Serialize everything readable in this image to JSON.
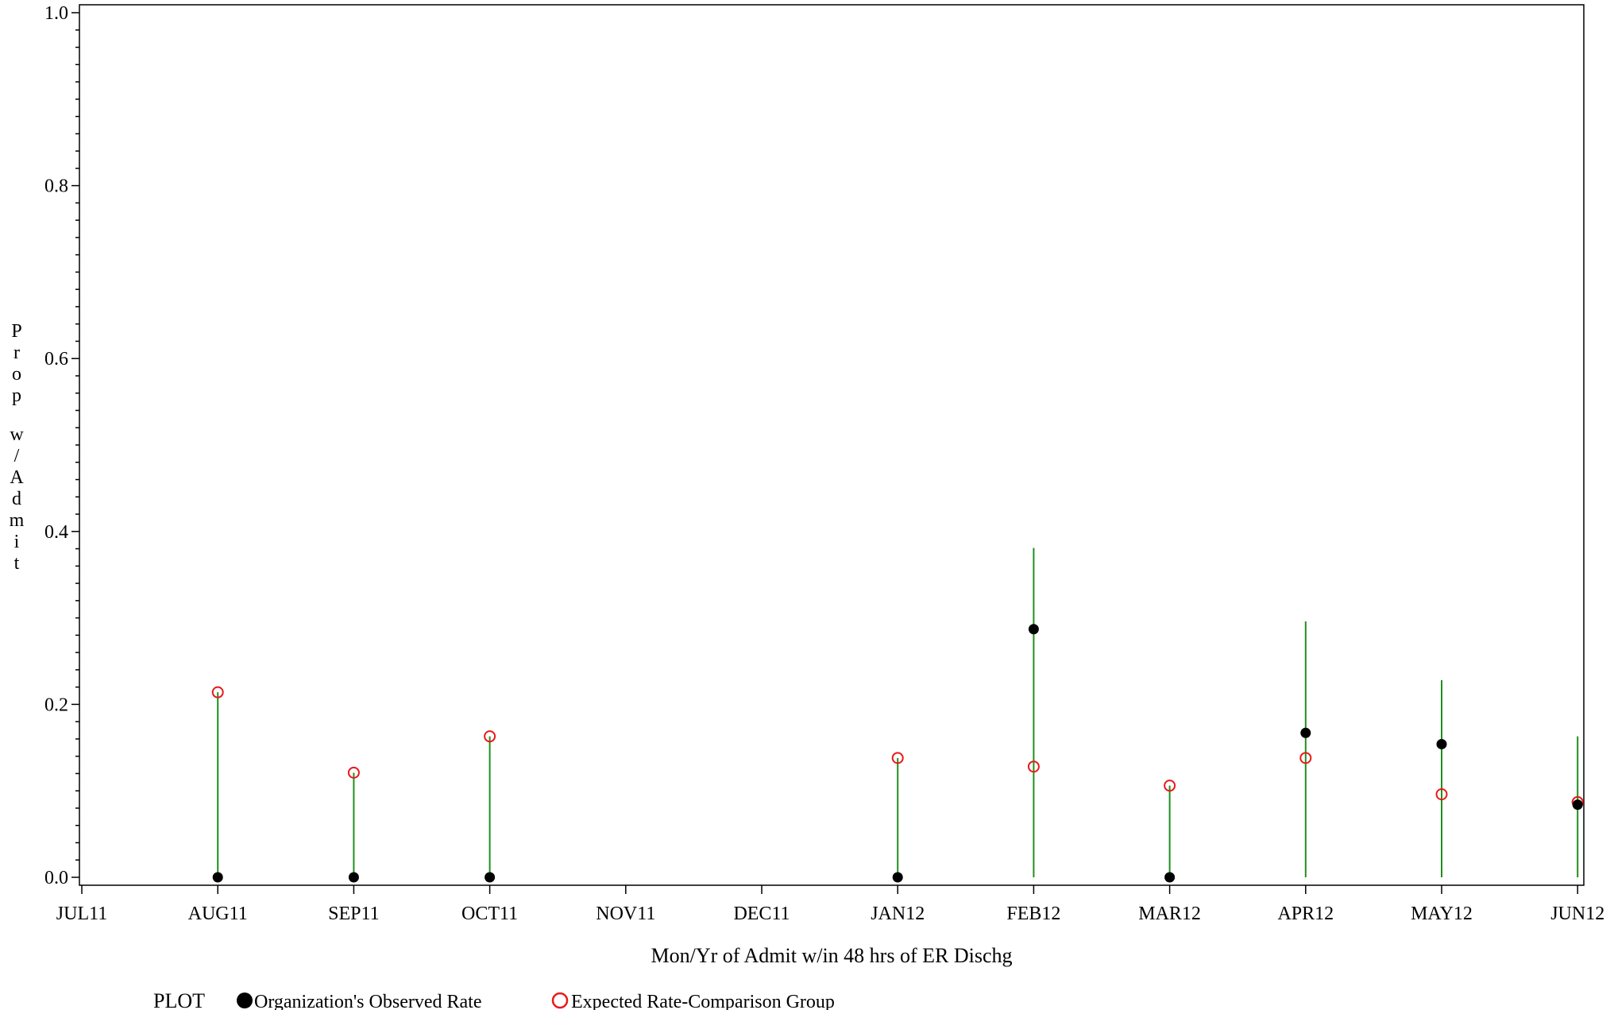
{
  "chart_data": {
    "type": "scatter",
    "title": "",
    "xlabel": "Mon/Yr of Admit w/in 48 hrs of ER Dischg",
    "ylabel": "Prop w/Admit",
    "categories": [
      "JUL11",
      "AUG11",
      "SEP11",
      "OCT11",
      "NOV11",
      "DEC11",
      "JAN12",
      "FEB12",
      "MAR12",
      "APR12",
      "MAY12",
      "JUN12"
    ],
    "ylim": [
      0,
      1.0
    ],
    "y_ticks": [
      "0.0",
      "0.2",
      "0.4",
      "0.6",
      "0.8",
      "1.0"
    ],
    "grid": false,
    "legend_position": "bottom-left",
    "legend_prefix": "PLOT",
    "series": [
      {
        "name": "Organization's Observed Rate",
        "marker": "filled-circle",
        "color": "#000000",
        "values": [
          null,
          0.0,
          0.0,
          0.0,
          null,
          null,
          0.0,
          0.287,
          0.0,
          0.167,
          0.154,
          0.084
        ]
      },
      {
        "name": "Expected Rate-Comparison Group",
        "marker": "open-circle",
        "color": "#e8191a",
        "values": [
          null,
          0.214,
          0.121,
          0.163,
          null,
          null,
          0.138,
          0.128,
          0.106,
          0.138,
          0.096,
          0.087
        ]
      }
    ],
    "error_bars": {
      "color": "#1f8f1f",
      "lower": [
        null,
        0.0,
        0.0,
        0.0,
        null,
        null,
        0.0,
        0.0,
        0.0,
        0.0,
        0.0,
        0.0
      ],
      "upper": [
        null,
        0.214,
        0.121,
        0.163,
        null,
        null,
        0.138,
        0.381,
        0.106,
        0.296,
        0.228,
        0.163
      ]
    }
  }
}
